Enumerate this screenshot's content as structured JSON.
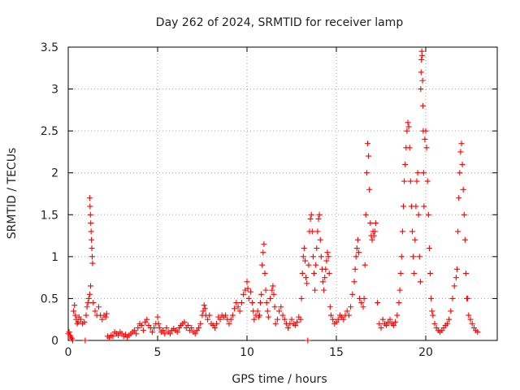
{
  "chart_data": {
    "type": "scatter",
    "title": "Day 262 of 2024, SRMTID for receiver lamp",
    "xlabel": "GPS time / hours",
    "ylabel": "SRMTID / TECUs",
    "xlim": [
      0,
      24
    ],
    "ylim": [
      0,
      3.5
    ],
    "xticks": [
      0,
      5,
      10,
      15,
      20
    ],
    "xtick_labels": [
      "0",
      "5",
      "10",
      "15",
      "20"
    ],
    "yticks": [
      0,
      0.5,
      1,
      1.5,
      2,
      2.5,
      3,
      3.5
    ],
    "ytick_labels": [
      "0",
      "0.5",
      "1",
      "1.5",
      "2",
      "2.5",
      "3",
      "3.5"
    ],
    "grid": true,
    "marker": "+",
    "color": "#ff0000",
    "series": [
      {
        "name": "SRMTID",
        "points": [
          [
            0.0,
            0.08
          ],
          [
            0.05,
            0.1
          ],
          [
            0.1,
            0.06
          ],
          [
            0.15,
            0.04
          ],
          [
            0.2,
            0.02
          ],
          [
            0.25,
            0.0
          ],
          [
            0.3,
            0.35
          ],
          [
            0.35,
            0.42
          ],
          [
            0.4,
            0.3
          ],
          [
            0.45,
            0.25
          ],
          [
            0.5,
            0.2
          ],
          [
            0.55,
            0.22
          ],
          [
            0.6,
            0.28
          ],
          [
            0.7,
            0.25
          ],
          [
            0.8,
            0.2
          ],
          [
            0.9,
            0.22
          ],
          [
            0.95,
            0.0
          ],
          [
            1.0,
            0.3
          ],
          [
            1.05,
            0.4
          ],
          [
            1.1,
            0.45
          ],
          [
            1.15,
            0.5
          ],
          [
            1.2,
            0.55
          ],
          [
            1.25,
            0.65
          ],
          [
            1.2,
            1.7
          ],
          [
            1.22,
            1.6
          ],
          [
            1.24,
            1.5
          ],
          [
            1.26,
            1.4
          ],
          [
            1.28,
            1.3
          ],
          [
            1.3,
            1.2
          ],
          [
            1.32,
            1.1
          ],
          [
            1.34,
            1.0
          ],
          [
            1.36,
            0.92
          ],
          [
            1.4,
            0.45
          ],
          [
            1.5,
            0.35
          ],
          [
            1.6,
            0.3
          ],
          [
            1.7,
            0.4
          ],
          [
            1.8,
            0.3
          ],
          [
            1.9,
            0.25
          ],
          [
            2.0,
            0.3
          ],
          [
            2.1,
            0.28
          ],
          [
            2.15,
            0.32
          ],
          [
            2.2,
            0.05
          ],
          [
            2.3,
            0.03
          ],
          [
            2.4,
            0.06
          ],
          [
            2.5,
            0.05
          ],
          [
            2.6,
            0.1
          ],
          [
            2.7,
            0.08
          ],
          [
            2.8,
            0.06
          ],
          [
            2.9,
            0.1
          ],
          [
            3.0,
            0.08
          ],
          [
            3.1,
            0.05
          ],
          [
            3.2,
            0.07
          ],
          [
            3.3,
            0.04
          ],
          [
            3.4,
            0.06
          ],
          [
            3.5,
            0.08
          ],
          [
            3.6,
            0.1
          ],
          [
            3.7,
            0.12
          ],
          [
            3.8,
            0.08
          ],
          [
            3.9,
            0.15
          ],
          [
            4.0,
            0.2
          ],
          [
            4.1,
            0.18
          ],
          [
            4.2,
            0.12
          ],
          [
            4.3,
            0.22
          ],
          [
            4.4,
            0.25
          ],
          [
            4.5,
            0.18
          ],
          [
            4.6,
            0.15
          ],
          [
            4.7,
            0.1
          ],
          [
            4.8,
            0.15
          ],
          [
            4.9,
            0.2
          ],
          [
            5.0,
            0.28
          ],
          [
            5.05,
            0.2
          ],
          [
            5.1,
            0.15
          ],
          [
            5.2,
            0.1
          ],
          [
            5.3,
            0.12
          ],
          [
            5.4,
            0.08
          ],
          [
            5.5,
            0.15
          ],
          [
            5.6,
            0.1
          ],
          [
            5.7,
            0.08
          ],
          [
            5.8,
            0.12
          ],
          [
            5.9,
            0.14
          ],
          [
            6.0,
            0.12
          ],
          [
            6.1,
            0.1
          ],
          [
            6.2,
            0.15
          ],
          [
            6.3,
            0.18
          ],
          [
            6.4,
            0.2
          ],
          [
            6.5,
            0.22
          ],
          [
            6.6,
            0.15
          ],
          [
            6.7,
            0.18
          ],
          [
            6.8,
            0.12
          ],
          [
            6.9,
            0.15
          ],
          [
            7.0,
            0.1
          ],
          [
            7.1,
            0.08
          ],
          [
            7.2,
            0.12
          ],
          [
            7.3,
            0.15
          ],
          [
            7.4,
            0.2
          ],
          [
            7.5,
            0.3
          ],
          [
            7.55,
            0.35
          ],
          [
            7.6,
            0.42
          ],
          [
            7.65,
            0.38
          ],
          [
            7.7,
            0.3
          ],
          [
            7.8,
            0.25
          ],
          [
            7.9,
            0.3
          ],
          [
            8.0,
            0.2
          ],
          [
            8.1,
            0.18
          ],
          [
            8.2,
            0.15
          ],
          [
            8.3,
            0.2
          ],
          [
            8.4,
            0.28
          ],
          [
            8.5,
            0.25
          ],
          [
            8.6,
            0.3
          ],
          [
            8.7,
            0.28
          ],
          [
            8.8,
            0.3
          ],
          [
            8.9,
            0.25
          ],
          [
            9.0,
            0.2
          ],
          [
            9.1,
            0.25
          ],
          [
            9.2,
            0.3
          ],
          [
            9.3,
            0.38
          ],
          [
            9.4,
            0.45
          ],
          [
            9.5,
            0.4
          ],
          [
            9.6,
            0.35
          ],
          [
            9.7,
            0.45
          ],
          [
            9.8,
            0.55
          ],
          [
            9.9,
            0.6
          ],
          [
            10.0,
            0.7
          ],
          [
            10.05,
            0.62
          ],
          [
            10.1,
            0.5
          ],
          [
            10.2,
            0.58
          ],
          [
            10.3,
            0.45
          ],
          [
            10.35,
            0.35
          ],
          [
            10.4,
            0.25
          ],
          [
            10.5,
            0.3
          ],
          [
            10.6,
            0.35
          ],
          [
            10.65,
            0.28
          ],
          [
            10.7,
            0.3
          ],
          [
            10.75,
            0.45
          ],
          [
            10.8,
            0.55
          ],
          [
            10.85,
            0.9
          ],
          [
            10.9,
            1.05
          ],
          [
            10.95,
            1.15
          ],
          [
            11.0,
            0.8
          ],
          [
            11.05,
            0.6
          ],
          [
            11.1,
            0.45
          ],
          [
            11.15,
            0.35
          ],
          [
            11.2,
            0.28
          ],
          [
            11.3,
            0.5
          ],
          [
            11.4,
            0.6
          ],
          [
            11.45,
            0.65
          ],
          [
            11.5,
            0.55
          ],
          [
            11.55,
            0.4
          ],
          [
            11.6,
            0.2
          ],
          [
            11.7,
            0.25
          ],
          [
            11.8,
            0.35
          ],
          [
            11.9,
            0.4
          ],
          [
            12.0,
            0.3
          ],
          [
            12.1,
            0.25
          ],
          [
            12.2,
            0.2
          ],
          [
            12.3,
            0.15
          ],
          [
            12.4,
            0.2
          ],
          [
            12.5,
            0.25
          ],
          [
            12.6,
            0.2
          ],
          [
            12.7,
            0.18
          ],
          [
            12.8,
            0.22
          ],
          [
            12.9,
            0.28
          ],
          [
            13.0,
            0.25
          ],
          [
            13.05,
            0.5
          ],
          [
            13.1,
            0.8
          ],
          [
            13.15,
            1.0
          ],
          [
            13.2,
            1.1
          ],
          [
            13.25,
            0.95
          ],
          [
            13.3,
            0.75
          ],
          [
            13.35,
            0.68
          ],
          [
            13.4,
            0.0
          ],
          [
            13.45,
            0.9
          ],
          [
            13.5,
            1.3
          ],
          [
            13.55,
            1.45
          ],
          [
            13.6,
            1.5
          ],
          [
            13.65,
            1.3
          ],
          [
            13.7,
            1.0
          ],
          [
            13.75,
            0.8
          ],
          [
            13.8,
            0.6
          ],
          [
            13.85,
            0.9
          ],
          [
            13.9,
            1.1
          ],
          [
            13.95,
            1.3
          ],
          [
            14.0,
            1.45
          ],
          [
            14.05,
            1.5
          ],
          [
            14.1,
            1.2
          ],
          [
            14.15,
            1.0
          ],
          [
            14.2,
            0.85
          ],
          [
            14.25,
            0.7
          ],
          [
            14.3,
            0.6
          ],
          [
            14.35,
            0.75
          ],
          [
            14.4,
            0.85
          ],
          [
            14.45,
            0.95
          ],
          [
            14.5,
            1.05
          ],
          [
            14.55,
            1.0
          ],
          [
            14.6,
            0.8
          ],
          [
            14.65,
            0.4
          ],
          [
            14.7,
            0.3
          ],
          [
            14.8,
            0.25
          ],
          [
            14.9,
            0.2
          ],
          [
            15.0,
            0.22
          ],
          [
            15.1,
            0.25
          ],
          [
            15.2,
            0.3
          ],
          [
            15.3,
            0.28
          ],
          [
            15.4,
            0.25
          ],
          [
            15.5,
            0.3
          ],
          [
            15.6,
            0.35
          ],
          [
            15.7,
            0.3
          ],
          [
            15.8,
            0.4
          ],
          [
            15.9,
            0.55
          ],
          [
            16.0,
            0.7
          ],
          [
            16.05,
            0.85
          ],
          [
            16.1,
            1.0
          ],
          [
            16.15,
            1.1
          ],
          [
            16.2,
            1.2
          ],
          [
            16.25,
            1.05
          ],
          [
            16.3,
            0.5
          ],
          [
            16.4,
            0.45
          ],
          [
            16.5,
            0.4
          ],
          [
            16.55,
            0.5
          ],
          [
            16.6,
            0.9
          ],
          [
            16.65,
            1.5
          ],
          [
            16.7,
            2.0
          ],
          [
            16.75,
            2.35
          ],
          [
            16.8,
            2.2
          ],
          [
            16.85,
            1.8
          ],
          [
            16.9,
            1.4
          ],
          [
            16.95,
            1.25
          ],
          [
            17.0,
            1.2
          ],
          [
            17.05,
            1.3
          ],
          [
            17.1,
            1.25
          ],
          [
            17.15,
            1.3
          ],
          [
            17.2,
            1.4
          ],
          [
            17.3,
            0.45
          ],
          [
            17.4,
            0.2
          ],
          [
            17.5,
            0.15
          ],
          [
            17.6,
            0.25
          ],
          [
            17.7,
            0.2
          ],
          [
            17.8,
            0.18
          ],
          [
            17.9,
            0.22
          ],
          [
            18.0,
            0.25
          ],
          [
            18.1,
            0.2
          ],
          [
            18.2,
            0.18
          ],
          [
            18.3,
            0.22
          ],
          [
            18.4,
            0.3
          ],
          [
            18.5,
            0.45
          ],
          [
            18.55,
            0.6
          ],
          [
            18.6,
            0.8
          ],
          [
            18.65,
            1.0
          ],
          [
            18.7,
            1.3
          ],
          [
            18.75,
            1.6
          ],
          [
            18.8,
            1.9
          ],
          [
            18.85,
            2.1
          ],
          [
            18.9,
            2.3
          ],
          [
            18.95,
            2.5
          ],
          [
            19.0,
            2.6
          ],
          [
            19.05,
            2.55
          ],
          [
            19.1,
            2.3
          ],
          [
            19.15,
            1.9
          ],
          [
            19.2,
            1.6
          ],
          [
            19.25,
            1.3
          ],
          [
            19.3,
            1.0
          ],
          [
            19.35,
            0.8
          ],
          [
            19.4,
            1.2
          ],
          [
            19.45,
            1.6
          ],
          [
            19.5,
            1.9
          ],
          [
            19.55,
            2.0
          ],
          [
            19.6,
            1.5
          ],
          [
            19.65,
            1.0
          ],
          [
            19.7,
            0.7
          ],
          [
            19.72,
            3.0
          ],
          [
            19.74,
            3.2
          ],
          [
            19.76,
            3.35
          ],
          [
            19.78,
            3.45
          ],
          [
            19.8,
            3.4
          ],
          [
            19.82,
            3.1
          ],
          [
            19.84,
            2.8
          ],
          [
            19.86,
            2.5
          ],
          [
            19.88,
            2.0
          ],
          [
            19.9,
            1.6
          ],
          [
            19.95,
            2.4
          ],
          [
            20.0,
            2.5
          ],
          [
            20.05,
            2.3
          ],
          [
            20.1,
            1.9
          ],
          [
            20.15,
            1.5
          ],
          [
            20.2,
            1.1
          ],
          [
            20.25,
            0.8
          ],
          [
            20.3,
            0.5
          ],
          [
            20.35,
            0.35
          ],
          [
            20.4,
            0.3
          ],
          [
            20.5,
            0.2
          ],
          [
            20.6,
            0.15
          ],
          [
            20.7,
            0.12
          ],
          [
            20.8,
            0.1
          ],
          [
            20.9,
            0.12
          ],
          [
            21.0,
            0.15
          ],
          [
            21.1,
            0.18
          ],
          [
            21.2,
            0.2
          ],
          [
            21.3,
            0.25
          ],
          [
            21.4,
            0.35
          ],
          [
            21.5,
            0.5
          ],
          [
            21.6,
            0.65
          ],
          [
            21.7,
            0.75
          ],
          [
            21.75,
            0.85
          ],
          [
            21.8,
            1.3
          ],
          [
            21.85,
            1.7
          ],
          [
            21.9,
            2.0
          ],
          [
            21.95,
            2.25
          ],
          [
            22.0,
            2.35
          ],
          [
            22.05,
            2.1
          ],
          [
            22.1,
            1.8
          ],
          [
            22.15,
            1.5
          ],
          [
            22.2,
            1.2
          ],
          [
            22.25,
            0.8
          ],
          [
            22.3,
            0.5
          ],
          [
            22.35,
            0.5
          ],
          [
            22.4,
            0.3
          ],
          [
            22.5,
            0.25
          ],
          [
            22.6,
            0.2
          ],
          [
            22.7,
            0.15
          ],
          [
            22.8,
            0.12
          ],
          [
            22.9,
            0.1
          ]
        ]
      }
    ]
  }
}
